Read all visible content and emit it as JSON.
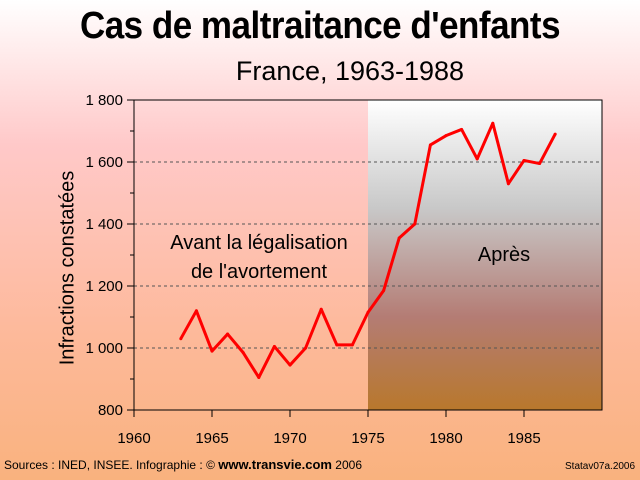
{
  "chart_data": {
    "type": "line",
    "title": "Cas de maltraitance d'enfants",
    "subtitle": "France, 1963-1988",
    "ylabel": "Infractions constatées",
    "xlabel": "",
    "xlim": [
      1960,
      1990
    ],
    "ylim": [
      800,
      1800
    ],
    "x_ticks": [
      1960,
      1965,
      1970,
      1975,
      1980,
      1985
    ],
    "y_ticks": [
      800,
      1000,
      1200,
      1400,
      1600,
      1800
    ],
    "y_tick_labels": [
      "800",
      "1 000",
      "1 200",
      "1 400",
      "1 600",
      "1 800"
    ],
    "grid": "horizontal dashed",
    "series": [
      {
        "name": "Infractions constatées",
        "color": "#ff0000",
        "x": [
          1963,
          1964,
          1965,
          1966,
          1967,
          1968,
          1969,
          1970,
          1971,
          1972,
          1973,
          1974,
          1975,
          1976,
          1977,
          1978,
          1979,
          1980,
          1981,
          1982,
          1983,
          1984,
          1985,
          1986,
          1987
        ],
        "values": [
          1030,
          1120,
          990,
          1045,
          985,
          905,
          1005,
          945,
          1000,
          1125,
          1010,
          1010,
          1115,
          1185,
          1355,
          1400,
          1655,
          1685,
          1705,
          1610,
          1725,
          1530,
          1605,
          1595,
          1690
        ]
      }
    ],
    "shaded_region": {
      "from": 1975,
      "to": 1990
    },
    "annotations": {
      "before_line1": "Avant la légalisation",
      "before_line2": "de l'avortement",
      "after": "Après"
    }
  },
  "footer": {
    "sources": "Sources : INED, INSEE. Infographie : ©",
    "url": "www.transvie.com",
    "year": "2006",
    "code": "Statav07a.2006"
  }
}
